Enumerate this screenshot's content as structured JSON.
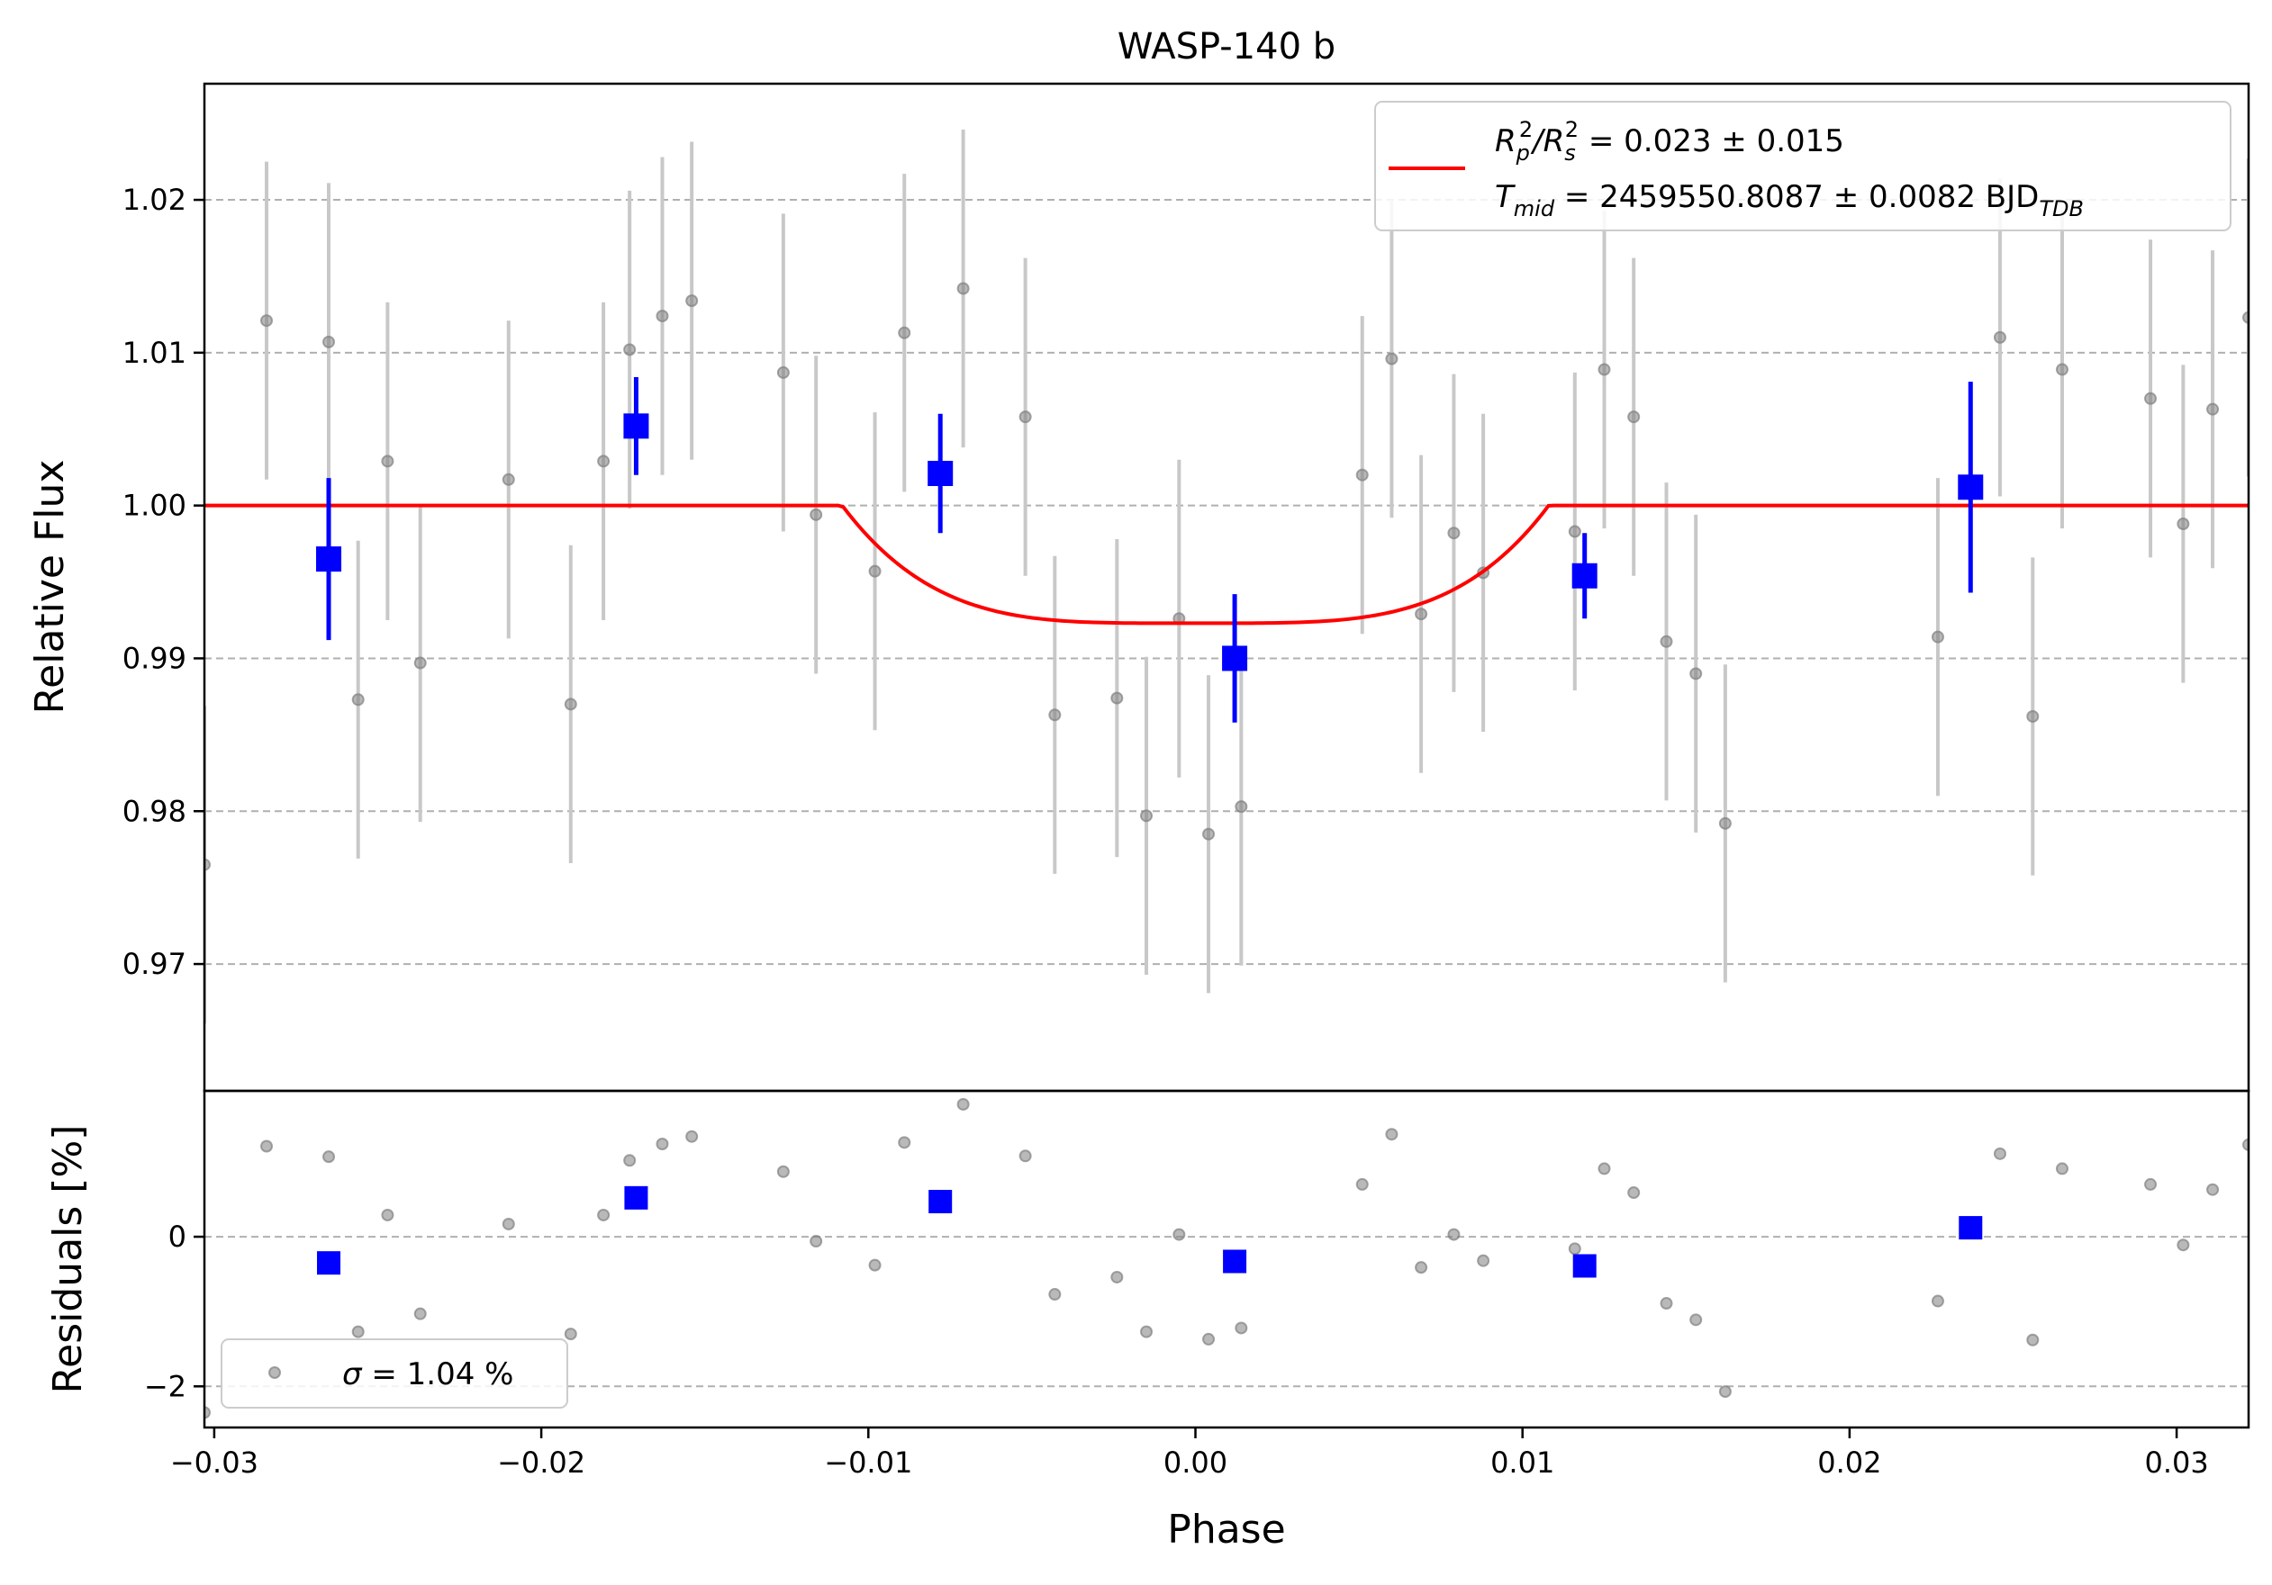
{
  "chart_data": [
    {
      "type": "scatter",
      "panel": "flux",
      "title": "WASP-140 b",
      "ylabel": "Relative Flux",
      "xlim": [
        -0.0303,
        0.0322
      ],
      "ylim": [
        0.9617,
        1.0276
      ],
      "x_ticks": [
        -0.03,
        -0.02,
        -0.01,
        0.0,
        0.01,
        0.02,
        0.03
      ],
      "x_tick_labels": [
        "−0.03",
        "−0.02",
        "−0.01",
        "0.00",
        "0.01",
        "0.02",
        "0.03"
      ],
      "y_ticks": [
        0.97,
        0.98,
        0.99,
        1.0,
        1.01,
        1.02
      ],
      "y_tick_labels": [
        "0.97",
        "0.98",
        "0.99",
        "1.00",
        "1.01",
        "1.02"
      ],
      "grid": "horizontal dashed",
      "legend_position": "top-right",
      "legend": {
        "line1_main": "R",
        "line1_sub1": "p",
        "line1_sup1": "2",
        "line1_slash": "/R",
        "line1_sub2": "s",
        "line1_sup2": "2",
        "line1_value": " = 0.023 ± 0.015",
        "line2_main": "T",
        "line2_sub": "mid",
        "line2_value": " = 2459550.8087 ± 0.0082 BJD",
        "line2_unit_sub": "TDB"
      },
      "model": {
        "color": "#ff0000",
        "baseline": 1.0,
        "depth": 0.0077,
        "ingress_phase": -0.0108,
        "egress_phase": 0.0108
      },
      "raw_points": [
        {
          "x": -0.0303,
          "y": 0.9765,
          "err": 0.0104
        },
        {
          "x": -0.0284,
          "y": 1.0121,
          "err": 0.0104
        },
        {
          "x": -0.0265,
          "y": 1.0107,
          "err": 0.0104
        },
        {
          "x": -0.0256,
          "y": 0.9873,
          "err": 0.0104
        },
        {
          "x": -0.0247,
          "y": 1.0029,
          "err": 0.0104
        },
        {
          "x": -0.0237,
          "y": 0.9897,
          "err": 0.0104
        },
        {
          "x": -0.021,
          "y": 1.0017,
          "err": 0.0104
        },
        {
          "x": -0.0191,
          "y": 0.987,
          "err": 0.0104
        },
        {
          "x": -0.0181,
          "y": 1.0029,
          "err": 0.0104
        },
        {
          "x": -0.0173,
          "y": 1.0102,
          "err": 0.0104
        },
        {
          "x": -0.0163,
          "y": 1.0124,
          "err": 0.0104
        },
        {
          "x": -0.0154,
          "y": 1.0134,
          "err": 0.0104
        },
        {
          "x": -0.0126,
          "y": 1.0087,
          "err": 0.0104
        },
        {
          "x": -0.0116,
          "y": 0.9994,
          "err": 0.0104
        },
        {
          "x": -0.0098,
          "y": 0.9957,
          "err": 0.0104
        },
        {
          "x": -0.0089,
          "y": 1.0113,
          "err": 0.0104
        },
        {
          "x": -0.0071,
          "y": 1.0142,
          "err": 0.0104
        },
        {
          "x": -0.0052,
          "y": 1.0058,
          "err": 0.0104
        },
        {
          "x": -0.0043,
          "y": 0.9863,
          "err": 0.0104
        },
        {
          "x": -0.0024,
          "y": 0.9874,
          "err": 0.0104
        },
        {
          "x": -0.0015,
          "y": 0.9797,
          "err": 0.0104
        },
        {
          "x": -0.0005,
          "y": 0.9926,
          "err": 0.0104
        },
        {
          "x": 0.0004,
          "y": 0.9785,
          "err": 0.0104
        },
        {
          "x": 0.0014,
          "y": 0.9803,
          "err": 0.0104
        },
        {
          "x": 0.0051,
          "y": 1.002,
          "err": 0.0104
        },
        {
          "x": 0.006,
          "y": 1.0096,
          "err": 0.0104
        },
        {
          "x": 0.0069,
          "y": 0.9929,
          "err": 0.0104
        },
        {
          "x": 0.0079,
          "y": 0.9982,
          "err": 0.0104
        },
        {
          "x": 0.0088,
          "y": 0.9956,
          "err": 0.0104
        },
        {
          "x": 0.0116,
          "y": 0.9983,
          "err": 0.0104
        },
        {
          "x": 0.0125,
          "y": 1.0089,
          "err": 0.0104
        },
        {
          "x": 0.0134,
          "y": 1.0058,
          "err": 0.0104
        },
        {
          "x": 0.0144,
          "y": 0.9911,
          "err": 0.0104
        },
        {
          "x": 0.0153,
          "y": 0.989,
          "err": 0.0104
        },
        {
          "x": 0.0162,
          "y": 0.9792,
          "err": 0.0104
        },
        {
          "x": 0.0227,
          "y": 0.9914,
          "err": 0.0104
        },
        {
          "x": 0.0246,
          "y": 1.011,
          "err": 0.0104
        },
        {
          "x": 0.0256,
          "y": 0.9862,
          "err": 0.0104
        },
        {
          "x": 0.0265,
          "y": 1.0089,
          "err": 0.0104
        },
        {
          "x": 0.0292,
          "y": 1.007,
          "err": 0.0104
        },
        {
          "x": 0.0302,
          "y": 0.9988,
          "err": 0.0104
        },
        {
          "x": 0.0311,
          "y": 1.0063,
          "err": 0.0104
        },
        {
          "x": 0.0322,
          "y": 1.0123,
          "err": 0.0104
        }
      ],
      "binned_points": [
        {
          "x": -0.0265,
          "y": 0.9965,
          "err": 0.0053
        },
        {
          "x": -0.0171,
          "y": 1.0052,
          "err": 0.0032
        },
        {
          "x": -0.0078,
          "y": 1.0021,
          "err": 0.0039
        },
        {
          "x": 0.0012,
          "y": 0.99,
          "err": 0.0042
        },
        {
          "x": 0.0119,
          "y": 0.9954,
          "err": 0.0028
        },
        {
          "x": 0.0237,
          "y": 1.0012,
          "err": 0.0069
        }
      ]
    },
    {
      "type": "scatter",
      "panel": "residuals",
      "xlabel": "Phase",
      "ylabel": "Residuals [%]",
      "xlim": [
        -0.0303,
        0.0322
      ],
      "ylim": [
        -2.55,
        1.95
      ],
      "y_ticks": [
        -2,
        0
      ],
      "y_tick_labels": [
        "−2",
        "0"
      ],
      "grid": "horizontal dashed",
      "legend_position": "bottom-left",
      "legend": {
        "sigma_symbol": "σ",
        "sigma_value": " = 1.04 %"
      },
      "raw_points": [
        {
          "x": -0.0303,
          "y": -2.35
        },
        {
          "x": -0.0284,
          "y": 1.21
        },
        {
          "x": -0.0265,
          "y": 1.07
        },
        {
          "x": -0.0256,
          "y": -1.27
        },
        {
          "x": -0.0247,
          "y": 0.29
        },
        {
          "x": -0.0237,
          "y": -1.03
        },
        {
          "x": -0.021,
          "y": 0.17
        },
        {
          "x": -0.0191,
          "y": -1.3
        },
        {
          "x": -0.0181,
          "y": 0.29
        },
        {
          "x": -0.0173,
          "y": 1.02
        },
        {
          "x": -0.0163,
          "y": 1.24
        },
        {
          "x": -0.0154,
          "y": 1.34
        },
        {
          "x": -0.0126,
          "y": 0.87
        },
        {
          "x": -0.0116,
          "y": -0.06
        },
        {
          "x": -0.0098,
          "y": -0.38
        },
        {
          "x": -0.0089,
          "y": 1.26
        },
        {
          "x": -0.0071,
          "y": 1.77
        },
        {
          "x": -0.0052,
          "y": 1.08
        },
        {
          "x": -0.0043,
          "y": -0.77
        },
        {
          "x": -0.0024,
          "y": -0.54
        },
        {
          "x": -0.0015,
          "y": -1.27
        },
        {
          "x": -0.0005,
          "y": 0.03
        },
        {
          "x": 0.0004,
          "y": -1.37
        },
        {
          "x": 0.0014,
          "y": -1.22
        },
        {
          "x": 0.0051,
          "y": 0.7
        },
        {
          "x": 0.006,
          "y": 1.37
        },
        {
          "x": 0.0069,
          "y": -0.41
        },
        {
          "x": 0.0079,
          "y": 0.03
        },
        {
          "x": 0.0088,
          "y": -0.32
        },
        {
          "x": 0.0116,
          "y": -0.16
        },
        {
          "x": 0.0125,
          "y": 0.91
        },
        {
          "x": 0.0134,
          "y": 0.59
        },
        {
          "x": 0.0144,
          "y": -0.89
        },
        {
          "x": 0.0153,
          "y": -1.11
        },
        {
          "x": 0.0162,
          "y": -2.07
        },
        {
          "x": 0.0227,
          "y": -0.86
        },
        {
          "x": 0.0246,
          "y": 1.11
        },
        {
          "x": 0.0256,
          "y": -1.38
        },
        {
          "x": 0.0265,
          "y": 0.91
        },
        {
          "x": 0.0292,
          "y": 0.7
        },
        {
          "x": 0.0302,
          "y": -0.11
        },
        {
          "x": 0.0311,
          "y": 0.63
        },
        {
          "x": 0.0322,
          "y": 1.23
        }
      ],
      "binned_points": [
        {
          "x": -0.0265,
          "y": -0.35
        },
        {
          "x": -0.0171,
          "y": 0.52
        },
        {
          "x": -0.0078,
          "y": 0.47
        },
        {
          "x": 0.0012,
          "y": -0.33
        },
        {
          "x": 0.0119,
          "y": -0.39
        },
        {
          "x": 0.0237,
          "y": 0.12
        }
      ]
    }
  ],
  "colors": {
    "raw": "#808080",
    "raw_err": "#c8c8c8",
    "binned": "#0000ff",
    "model": "#ff0000",
    "grid": "#b0b0b0"
  }
}
